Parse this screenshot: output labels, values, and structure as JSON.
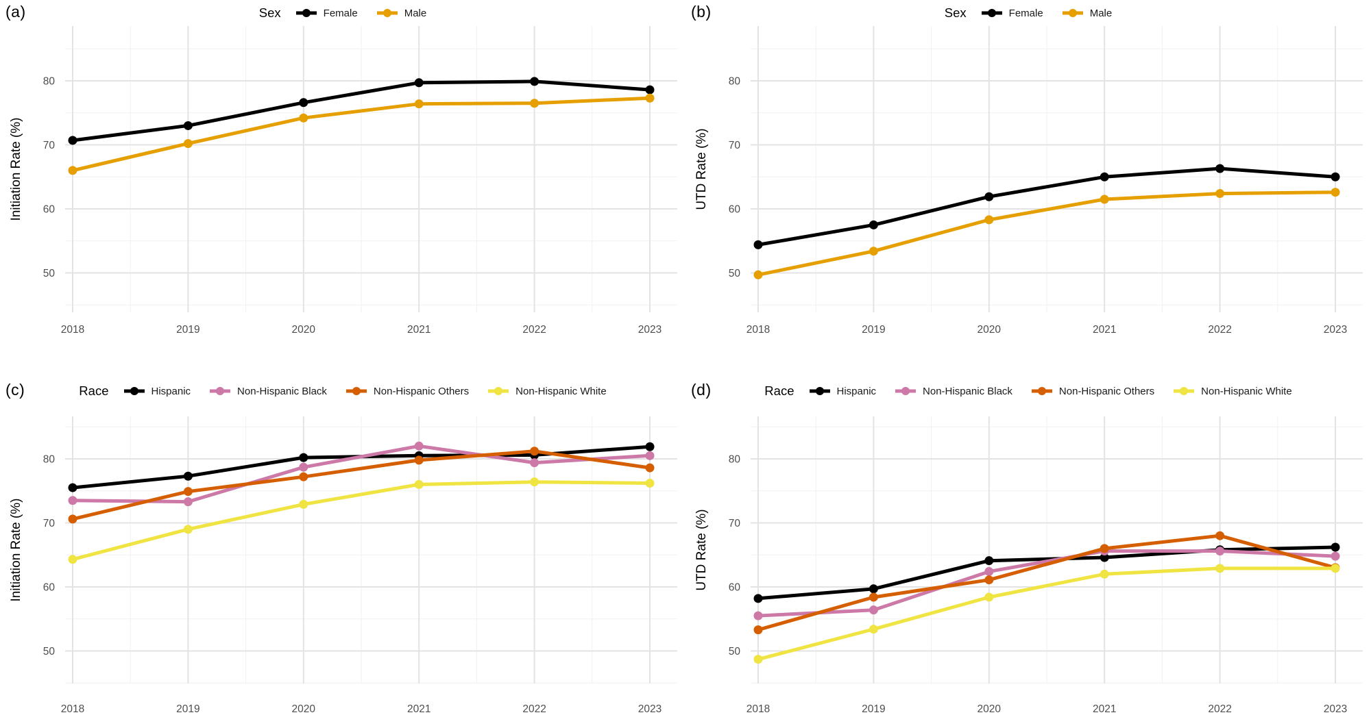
{
  "style": {
    "background": "#ffffff",
    "grid_major": "#e3e3e3",
    "grid_minor": "#f1f1f1",
    "tick_text": "#4d4d4d",
    "axis_title_color": "#000000",
    "palette": {
      "female_black": "#000000",
      "male_orange": "#E69F00",
      "hispanic_black": "#000000",
      "nh_black_pink": "#CC79A7",
      "nh_others_vermillion": "#D55E00",
      "nh_white_yellow": "#F0E442"
    }
  },
  "chart_data": [
    {
      "panel": "(a)",
      "type": "line",
      "legend_title": "Sex",
      "legend_position": "top",
      "x": [
        "2018",
        "2019",
        "2020",
        "2021",
        "2022",
        "2023"
      ],
      "xlabel": "",
      "ylabel": "Initiation Rate (%)",
      "yticks": [
        50,
        60,
        70,
        80
      ],
      "ylim": [
        44,
        88.5
      ],
      "grid": true,
      "series": [
        {
          "name": "Female",
          "color": "#000000",
          "values": [
            70.7,
            73.0,
            76.6,
            79.7,
            79.9,
            78.6
          ]
        },
        {
          "name": "Male",
          "color": "#E69F00",
          "values": [
            66.0,
            70.2,
            74.2,
            76.4,
            76.5,
            77.3
          ]
        }
      ]
    },
    {
      "panel": "(b)",
      "type": "line",
      "legend_title": "Sex",
      "legend_position": "top",
      "x": [
        "2018",
        "2019",
        "2020",
        "2021",
        "2022",
        "2023"
      ],
      "xlabel": "",
      "ylabel": "UTD Rate (%)",
      "yticks": [
        50,
        60,
        70,
        80
      ],
      "ylim": [
        44,
        88.5
      ],
      "grid": true,
      "series": [
        {
          "name": "Female",
          "color": "#000000",
          "values": [
            54.4,
            57.5,
            61.9,
            65.0,
            66.3,
            65.0
          ]
        },
        {
          "name": "Male",
          "color": "#E69F00",
          "values": [
            49.7,
            53.4,
            58.3,
            61.5,
            62.4,
            62.6
          ]
        }
      ]
    },
    {
      "panel": "(c)",
      "type": "line",
      "legend_title": "Race",
      "legend_position": "top",
      "x": [
        "2018",
        "2019",
        "2020",
        "2021",
        "2022",
        "2023"
      ],
      "xlabel": "",
      "ylabel": "Initiation Rate (%)",
      "yticks": [
        50,
        60,
        70,
        80
      ],
      "ylim": [
        45,
        86.5
      ],
      "grid": true,
      "series": [
        {
          "name": "Hispanic",
          "color": "#000000",
          "values": [
            75.5,
            77.3,
            80.2,
            80.5,
            80.6,
            81.9
          ]
        },
        {
          "name": "Non-Hispanic Black",
          "color": "#CC79A7",
          "values": [
            73.5,
            73.3,
            78.7,
            82.0,
            79.4,
            80.5
          ]
        },
        {
          "name": "Non-Hispanic Others",
          "color": "#D55E00",
          "values": [
            70.6,
            74.9,
            77.2,
            79.8,
            81.2,
            78.6
          ]
        },
        {
          "name": "Non-Hispanic White",
          "color": "#F0E442",
          "values": [
            64.3,
            69.0,
            72.9,
            76.0,
            76.4,
            76.2
          ]
        }
      ]
    },
    {
      "panel": "(d)",
      "type": "line",
      "legend_title": "Race",
      "legend_position": "top",
      "x": [
        "2018",
        "2019",
        "2020",
        "2021",
        "2022",
        "2023"
      ],
      "xlabel": "",
      "ylabel": "UTD Rate (%)",
      "yticks": [
        50,
        60,
        70,
        80
      ],
      "ylim": [
        45,
        86.5
      ],
      "grid": true,
      "series": [
        {
          "name": "Hispanic",
          "color": "#000000",
          "values": [
            58.2,
            59.7,
            64.1,
            64.6,
            65.8,
            66.2
          ]
        },
        {
          "name": "Non-Hispanic Black",
          "color": "#CC79A7",
          "values": [
            55.5,
            56.4,
            62.4,
            65.6,
            65.6,
            64.8
          ]
        },
        {
          "name": "Non-Hispanic Others",
          "color": "#D55E00",
          "values": [
            53.3,
            58.4,
            61.1,
            66.0,
            68.0,
            63.0
          ]
        },
        {
          "name": "Non-Hispanic White",
          "color": "#F0E442",
          "values": [
            48.7,
            53.4,
            58.4,
            62.0,
            62.9,
            62.9
          ]
        }
      ]
    }
  ]
}
